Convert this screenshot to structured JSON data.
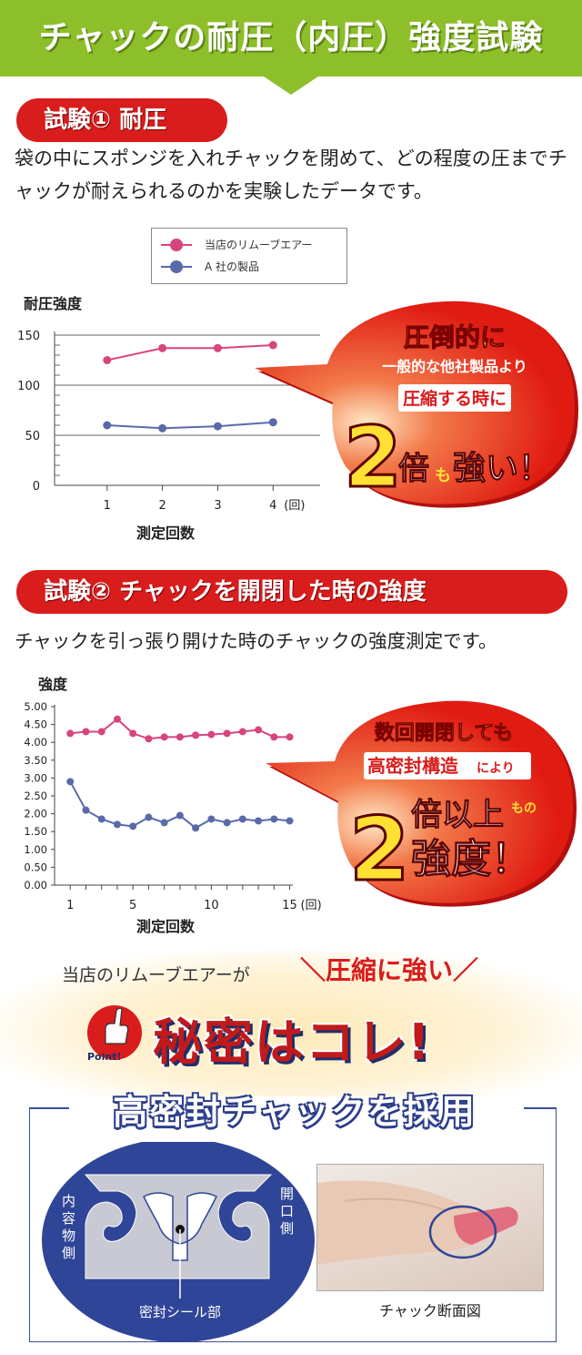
{
  "banner": {
    "title": "チャックの耐圧（内圧）強度試験"
  },
  "test1": {
    "heading": "試験① 耐圧",
    "description": "袋の中にスポンジを入れチャックを閉めて、どの程度の圧までチャックが耐えられるのかを実験したデータです。",
    "legend": [
      "当店のリムーブエアー",
      "A 社の製品"
    ],
    "y_title": "耐圧強度",
    "x_title": "測定回数",
    "x_unit": "(回)",
    "y_ticks": [
      "150",
      "100",
      "50",
      "0"
    ],
    "x_ticks": [
      "1",
      "2",
      "3",
      "4"
    ],
    "callout": {
      "line1": "圧倒的に",
      "line2": "一般的な他社製品より",
      "line3": "圧縮する時に",
      "big": "2",
      "tail1": "倍",
      "tail2": "も",
      "tail3": "強い！"
    }
  },
  "test2": {
    "heading": "試験② チャックを開閉した時の強度",
    "description": "チャックを引っ張り開けた時のチャックの強度測定です。",
    "y_title": "強度",
    "x_title": "測定回数",
    "x_unit": "(回)",
    "y_ticks": [
      "5.00",
      "4.50",
      "4.00",
      "3.50",
      "3.00",
      "2.50",
      "2.00",
      "1.50",
      "1.00",
      "0.50",
      "0.00"
    ],
    "x_ticks": [
      "1",
      "5",
      "10",
      "15"
    ],
    "callout": {
      "line1": "数回開閉しても",
      "line2a": "高密封構造",
      "line2b": "により",
      "big": "2",
      "tail1": "倍以上",
      "tail2": "もの",
      "tail3": "強度！"
    }
  },
  "secret": {
    "lead": "当店のリムーブエアーが",
    "slogan": "＼圧縮に強い／",
    "main": "秘密はコレ!",
    "badge": "Point!",
    "feature_title": "高密封チャックを採用",
    "diagram_left": "内容物側",
    "diagram_right": "開口側",
    "diagram_bottom": "密封シール部",
    "photo_caption": "チャック断面図"
  },
  "colors": {
    "pink": "#d6457d",
    "blue": "#5a6aa8",
    "red": "#d91c1c",
    "green": "#8dbf2a",
    "navy": "#2c3e8a"
  },
  "chart_data": [
    {
      "type": "line",
      "x": [
        1,
        2,
        3,
        4
      ],
      "series": [
        {
          "name": "当店のリムーブエアー",
          "values": [
            125,
            137,
            137,
            140
          ]
        },
        {
          "name": "A 社の製品",
          "values": [
            60,
            57,
            59,
            63
          ]
        }
      ],
      "xlabel": "測定回数",
      "ylabel": "耐圧強度",
      "ylim": [
        0,
        150
      ],
      "grid": true,
      "legend": "top"
    },
    {
      "type": "line",
      "x": [
        1,
        2,
        3,
        4,
        5,
        6,
        7,
        8,
        9,
        10,
        11,
        12,
        13,
        14,
        15
      ],
      "series": [
        {
          "values": [
            4.25,
            4.3,
            4.3,
            4.65,
            4.25,
            4.1,
            4.15,
            4.15,
            4.2,
            4.22,
            4.25,
            4.3,
            4.35,
            4.15,
            4.15
          ]
        },
        {
          "values": [
            2.9,
            2.1,
            1.85,
            1.7,
            1.65,
            1.9,
            1.75,
            1.95,
            1.6,
            1.85,
            1.75,
            1.85,
            1.8,
            1.85,
            1.8
          ]
        }
      ],
      "xlabel": "測定回数",
      "ylabel": "強度",
      "ylim": [
        0,
        5
      ],
      "grid": false
    }
  ]
}
